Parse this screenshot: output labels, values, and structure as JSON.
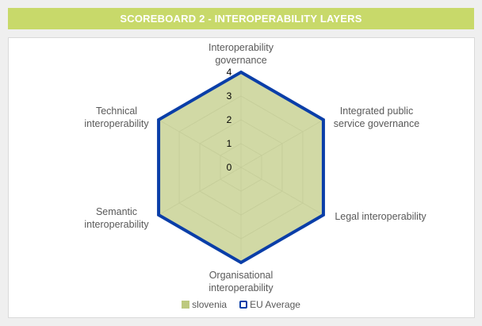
{
  "header": {
    "title": "SCOREBOARD 2 - INTEROPERABILITY LAYERS"
  },
  "colors": {
    "title_bg": "#c8d96a",
    "slovenia": "#bdc97f",
    "eu": "#0a3ea8",
    "grid": "#d9d9d9",
    "label": "#595959"
  },
  "chart_data": {
    "type": "radar",
    "categories": [
      "Interoperability governance",
      "Integrated public service governance",
      "Legal interoperability",
      "Organisational interoperability",
      "Semantic interoperability",
      "Technical interoperability"
    ],
    "category_lines": [
      [
        "Interoperability",
        "governance"
      ],
      [
        "Integrated public",
        "service governance"
      ],
      [
        "Legal interoperability"
      ],
      [
        "Organisational",
        "interoperability"
      ],
      [
        "Semantic",
        "interoperability"
      ],
      [
        "Technical",
        "interoperability"
      ]
    ],
    "rlim": [
      0,
      4
    ],
    "ticks": [
      "0",
      "1",
      "2",
      "3",
      "4"
    ],
    "series": [
      {
        "name": "slovenia",
        "values": [
          4,
          4,
          4,
          4,
          4,
          4
        ],
        "style": "filled"
      },
      {
        "name": "EU Average",
        "values": [
          4,
          4,
          4,
          4,
          4,
          4
        ],
        "style": "line"
      }
    ],
    "legend_position": "bottom"
  }
}
